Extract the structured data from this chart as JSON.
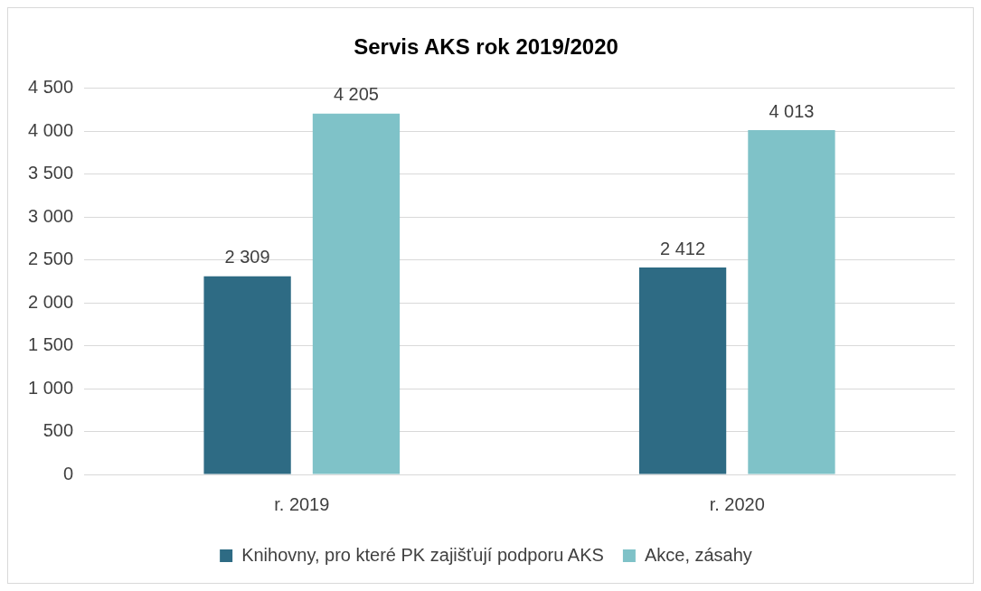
{
  "chart_data": {
    "type": "bar",
    "title": "Servis AKS rok 2019/2020",
    "categories": [
      "r. 2019",
      "r. 2020"
    ],
    "series": [
      {
        "name": "Knihovny, pro které PK zajišťují podporu AKS",
        "color": "#2e6b84",
        "values": [
          2309,
          2412
        ],
        "value_labels": [
          "2 309",
          "2 412"
        ]
      },
      {
        "name": "Akce, zásahy",
        "color": "#7fc2c8",
        "values": [
          4205,
          4013
        ],
        "value_labels": [
          "4 205",
          "4 013"
        ]
      }
    ],
    "ylim": [
      0,
      4500
    ],
    "yticks": [
      {
        "value": 0,
        "label": "0"
      },
      {
        "value": 500,
        "label": "500"
      },
      {
        "value": 1000,
        "label": "1 000"
      },
      {
        "value": 1500,
        "label": "1 500"
      },
      {
        "value": 2000,
        "label": "2 000"
      },
      {
        "value": 2500,
        "label": "2 500"
      },
      {
        "value": 3000,
        "label": "3 000"
      },
      {
        "value": 3500,
        "label": "3 500"
      },
      {
        "value": 4000,
        "label": "4 000"
      },
      {
        "value": 4500,
        "label": "4 500"
      }
    ],
    "grid": "y",
    "legend": "bottom"
  }
}
